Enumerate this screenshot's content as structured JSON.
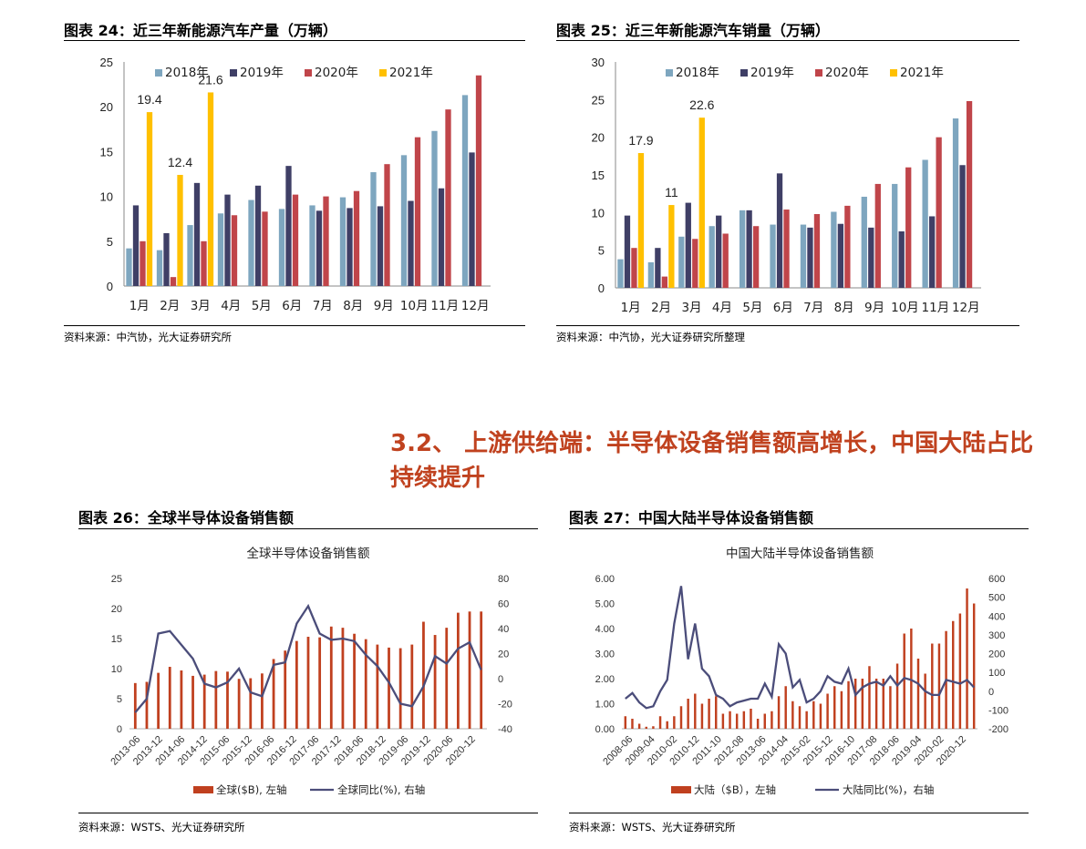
{
  "figures": [
    {
      "title": "图表 24：近三年新能源汽车产量（万辆）",
      "source": "资料来源：中汽协，光大证券研究所"
    },
    {
      "title": "图表 25：近三年新能源汽车销量（万辆）",
      "source": "资料来源：中汽协，光大证券研究所整理"
    },
    {
      "title": "图表 26：全球半导体设备销售额",
      "source": "资料来源：WSTS、光大证券研究所"
    },
    {
      "title": "图表 27：中国大陆半导体设备销售额",
      "source": "资料来源：WSTS、光大证券研究所"
    }
  ],
  "section": {
    "title": "3.2、  上游供给端：半导体设备销售额高增长，中国大陆占比持续提升"
  },
  "colors": {
    "s2018": "#7ea6bf",
    "s2019": "#3f3f66",
    "s2020": "#c0454a",
    "s2021": "#ffc000",
    "bar_red": "#c0401f",
    "line_navy": "#4b4d7a",
    "section": "#c0421f"
  },
  "chart_data": [
    {
      "type": "bar",
      "categories": [
        "1月",
        "2月",
        "3月",
        "4月",
        "5月",
        "6月",
        "7月",
        "8月",
        "9月",
        "10月",
        "11月",
        "12月"
      ],
      "series": [
        {
          "name": "2018年",
          "values": [
            4.2,
            4.0,
            6.8,
            8.1,
            9.6,
            8.6,
            9.0,
            9.9,
            12.7,
            14.6,
            17.3,
            21.3
          ]
        },
        {
          "name": "2019年",
          "values": [
            9.0,
            5.9,
            11.5,
            10.2,
            11.2,
            13.4,
            8.4,
            8.7,
            8.9,
            9.5,
            10.9,
            14.9
          ]
        },
        {
          "name": "2020年",
          "values": [
            5.0,
            1.0,
            5.0,
            7.9,
            8.3,
            10.2,
            10.0,
            10.6,
            13.6,
            16.6,
            19.7,
            23.5
          ]
        },
        {
          "name": "2021年",
          "values": [
            19.4,
            12.4,
            21.6,
            null,
            null,
            null,
            null,
            null,
            null,
            null,
            null,
            null
          ]
        }
      ],
      "data_labels": [
        "19.4",
        "12.4",
        "21.6"
      ],
      "ylim": [
        0,
        25
      ],
      "yticks": [
        "0",
        "5",
        "10",
        "15",
        "20",
        "25"
      ],
      "legend": "top"
    },
    {
      "type": "bar",
      "categories": [
        "1月",
        "2月",
        "3月",
        "4月",
        "5月",
        "6月",
        "7月",
        "8月",
        "9月",
        "10月",
        "11月",
        "12月"
      ],
      "series": [
        {
          "name": "2018年",
          "values": [
            3.8,
            3.4,
            6.8,
            8.2,
            10.3,
            8.4,
            8.4,
            10.1,
            12.1,
            13.8,
            17.0,
            22.5
          ]
        },
        {
          "name": "2019年",
          "values": [
            9.6,
            5.3,
            11.3,
            9.6,
            10.3,
            15.2,
            8.0,
            8.5,
            8.0,
            7.5,
            9.5,
            16.3
          ]
        },
        {
          "name": "2020年",
          "values": [
            5.3,
            1.5,
            6.5,
            7.2,
            8.2,
            10.4,
            9.8,
            10.9,
            13.8,
            16.0,
            20.0,
            24.8
          ]
        },
        {
          "name": "2021年",
          "values": [
            17.9,
            11.0,
            22.6,
            null,
            null,
            null,
            null,
            null,
            null,
            null,
            null,
            null
          ]
        }
      ],
      "data_labels": [
        "17.9",
        "11",
        "22.6"
      ],
      "ylim": [
        0,
        30
      ],
      "yticks": [
        "0",
        "5",
        "10",
        "15",
        "20",
        "25",
        "30"
      ],
      "legend": "top"
    },
    {
      "type": "bar",
      "title": "全球半导体设备销售额",
      "x": [
        "2013-06",
        "2013-09",
        "2013-12",
        "2014-03",
        "2014-06",
        "2014-09",
        "2014-12",
        "2015-03",
        "2015-06",
        "2015-09",
        "2015-12",
        "2016-03",
        "2016-06",
        "2016-09",
        "2016-12",
        "2017-03",
        "2017-06",
        "2017-09",
        "2017-12",
        "2018-03",
        "2018-06",
        "2018-09",
        "2018-12",
        "2019-03",
        "2019-06",
        "2019-09",
        "2019-12",
        "2020-03",
        "2020-06",
        "2020-09",
        "2020-12"
      ],
      "xtick_labels": [
        "2013-06",
        "2013-12",
        "2014-06",
        "2014-12",
        "2015-06",
        "2015-12",
        "2016-06",
        "2016-12",
        "2017-06",
        "2017-12",
        "2018-06",
        "2018-12",
        "2019-06",
        "2019-12",
        "2020-06",
        "2020-12"
      ],
      "series": [
        {
          "name": "全球($B), 左轴",
          "axis": "left",
          "type": "bar",
          "values": [
            7.6,
            7.8,
            9.3,
            10.3,
            9.7,
            8.8,
            9.0,
            9.6,
            9.5,
            8.3,
            8.4,
            9.2,
            11.6,
            13.0,
            14.6,
            15.3,
            15.2,
            17.0,
            16.8,
            15.8,
            14.9,
            14.0,
            13.5,
            13.4,
            14.0,
            17.8,
            15.6,
            16.8,
            19.3,
            19.5,
            19.5
          ]
        },
        {
          "name": "全球同比(%), 右轴",
          "axis": "right",
          "type": "line",
          "values": [
            -27,
            -16,
            36,
            38,
            27,
            16,
            -4,
            -7,
            -3,
            8,
            -11,
            -14,
            11,
            13,
            44,
            58,
            36,
            31,
            32,
            30,
            19,
            10,
            -3,
            -20,
            -22,
            -6,
            18,
            12,
            24,
            29,
            7
          ]
        }
      ],
      "ylim_left": [
        0,
        25
      ],
      "yticks_left": [
        "0",
        "5",
        "10",
        "15",
        "20",
        "25"
      ],
      "ylim_right": [
        -40,
        80
      ],
      "yticks_right": [
        "-40",
        "-20",
        "0",
        "20",
        "40",
        "60",
        "80"
      ],
      "legend": "bottom"
    },
    {
      "type": "bar",
      "title": "中国大陆半导体设备销售额",
      "x_start": "2008-06",
      "x_end": "2020-12",
      "x_step": "quarter",
      "xtick_labels": [
        "2008-06",
        "2009-04",
        "2010-02",
        "2010-12",
        "2011-10",
        "2012-08",
        "2013-06",
        "2014-04",
        "2015-02",
        "2015-12",
        "2016-10",
        "2017-08",
        "2018-06",
        "2019-04",
        "2020-02",
        "2020-12"
      ],
      "series": [
        {
          "name": "大陆（$B），左轴",
          "axis": "left",
          "type": "bar",
          "values": [
            0.5,
            0.4,
            0.2,
            0.08,
            0.1,
            0.5,
            0.3,
            0.5,
            0.9,
            1.2,
            1.4,
            1.0,
            1.2,
            1.3,
            0.6,
            0.7,
            0.6,
            0.7,
            0.8,
            0.4,
            0.6,
            0.7,
            1.3,
            1.7,
            1.1,
            0.9,
            0.7,
            1.1,
            1.0,
            1.4,
            1.7,
            1.5,
            1.9,
            2.0,
            2.0,
            2.5,
            2.0,
            2.0,
            1.7,
            2.6,
            3.8,
            4.0,
            2.8,
            2.2,
            3.4,
            3.4,
            3.9,
            4.3,
            4.6,
            5.6,
            5.0
          ]
        },
        {
          "name": "大陆同比(%)，右轴",
          "axis": "right",
          "type": "line",
          "values": [
            -40,
            -10,
            -60,
            -90,
            -80,
            0,
            60,
            360,
            560,
            170,
            360,
            120,
            80,
            -20,
            -40,
            -80,
            -60,
            -50,
            -40,
            -40,
            40,
            -30,
            250,
            200,
            20,
            60,
            -60,
            -40,
            0,
            80,
            50,
            40,
            120,
            -20,
            20,
            40,
            50,
            30,
            80,
            30,
            70,
            60,
            40,
            0,
            -20,
            -20,
            60,
            50,
            40,
            60,
            20
          ]
        }
      ],
      "ylim_left": [
        0,
        6
      ],
      "yticks_left": [
        "0.00",
        "1.00",
        "2.00",
        "3.00",
        "4.00",
        "5.00",
        "6.00"
      ],
      "ylim_right": [
        -200,
        600
      ],
      "yticks_right": [
        "-200",
        "-100",
        "0",
        "100",
        "200",
        "300",
        "400",
        "500",
        "600"
      ],
      "legend": "bottom"
    }
  ]
}
